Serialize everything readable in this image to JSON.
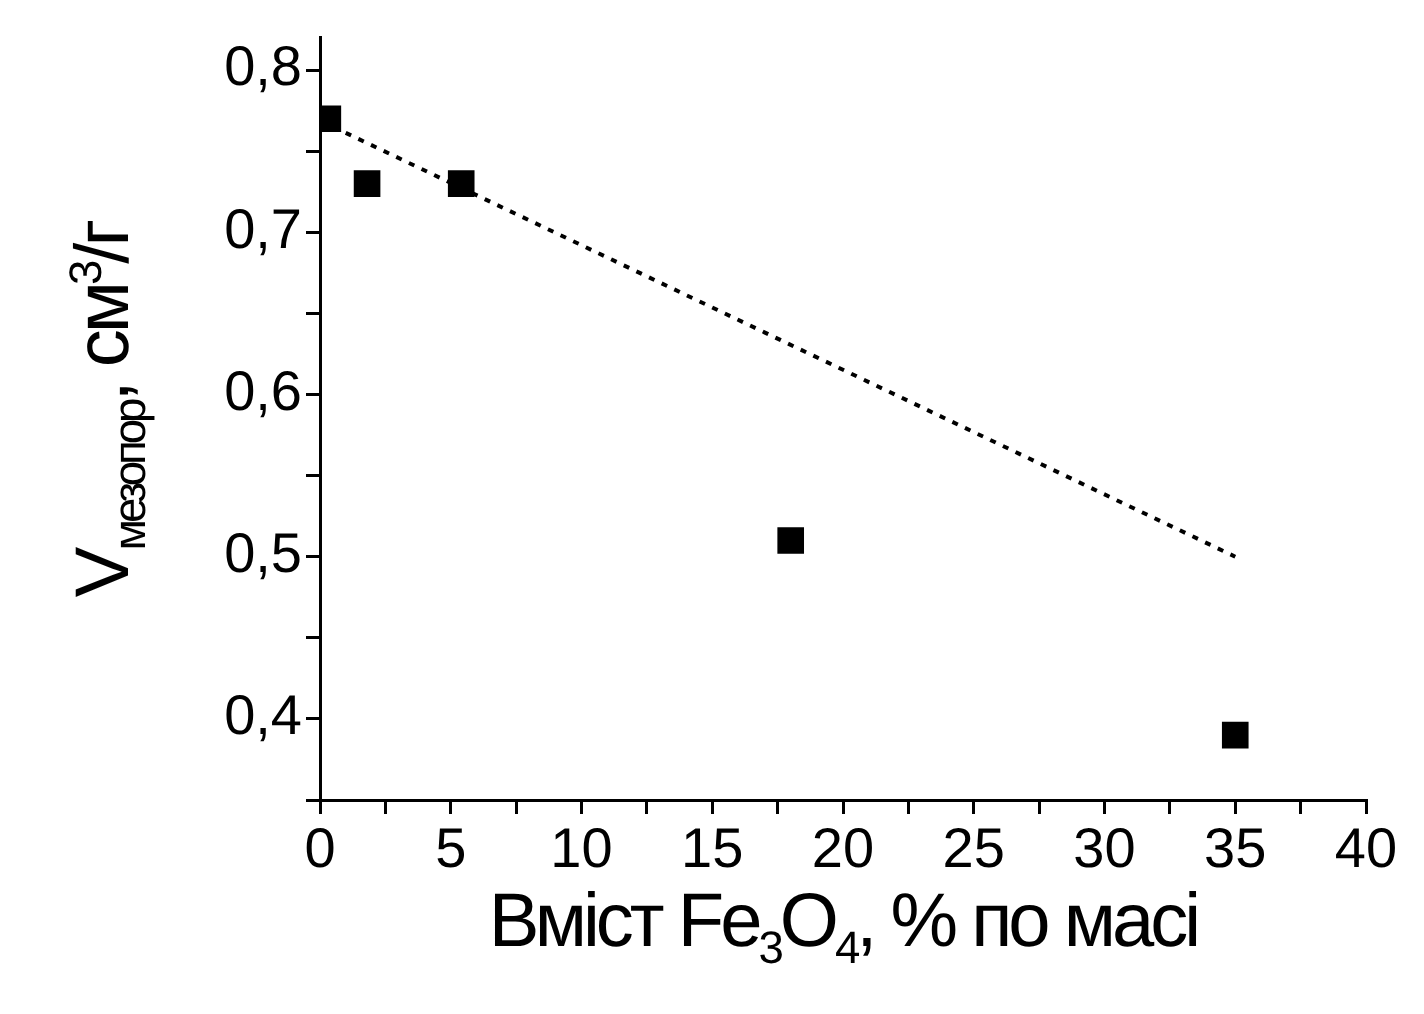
{
  "chart_data": {
    "type": "scatter",
    "xlabel": "Вміст Fe$_{3}$O$_{4}$, % по масі",
    "ylabel": "V$_{мезопор}$, см$^{3}$/г",
    "series": [
      {
        "type": "scatter",
        "color": "#000000",
        "x": [
          0.3,
          1.8,
          5.4,
          18,
          35
        ],
        "values": [
          0.77,
          0.73,
          0.73,
          0.51,
          0.39
        ],
        "marker": "square"
      },
      {
        "type": "line",
        "color": "#000000",
        "x": [
          0.5,
          35
        ],
        "values": [
          0.765,
          0.5
        ],
        "line_style": "dotted",
        "marker": "none"
      }
    ],
    "xlim": [
      0,
      40
    ],
    "xticks": [
      0,
      {
        "value": 2.5,
        "label": null
      },
      5,
      {
        "value": 7.5,
        "label": null
      },
      10,
      {
        "value": 12.5,
        "label": null
      },
      15,
      {
        "value": 17.5,
        "label": null
      },
      20,
      {
        "value": 22.5,
        "label": null
      },
      25,
      {
        "value": 27.5,
        "label": null
      },
      30,
      {
        "value": 32.5,
        "label": null
      },
      35,
      {
        "value": 37.5,
        "label": null
      },
      40
    ],
    "ylim": [
      0.35,
      0.82
    ],
    "yticks": [
      {
        "value": 0.35,
        "label": null
      },
      {
        "value": 0.4,
        "label": "0,4"
      },
      {
        "value": 0.45,
        "label": null
      },
      {
        "value": 0.5,
        "label": "0,5"
      },
      {
        "value": 0.55,
        "label": null
      },
      {
        "value": 0.6,
        "label": "0,6"
      },
      {
        "value": 0.65,
        "label": null
      },
      {
        "value": 0.7,
        "label": "0,7"
      },
      {
        "value": 0.75,
        "label": null
      },
      {
        "value": 0.8,
        "label": "0,8"
      }
    ],
    "grid": false,
    "legend": false
  }
}
